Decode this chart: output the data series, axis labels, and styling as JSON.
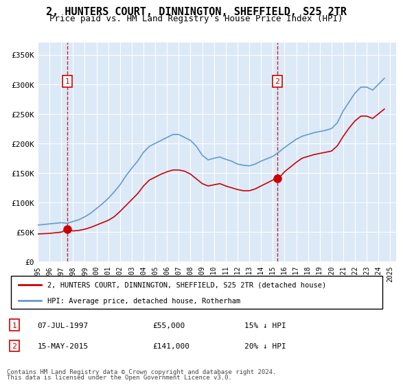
{
  "title": "2, HUNTERS COURT, DINNINGTON, SHEFFIELD, S25 2TR",
  "subtitle": "Price paid vs. HM Land Registry's House Price Index (HPI)",
  "legend_line1": "2, HUNTERS COURT, DINNINGTON, SHEFFIELD, S25 2TR (detached house)",
  "legend_line2": "HPI: Average price, detached house, Rotherham",
  "sale1_label": "1",
  "sale1_date": "07-JUL-1997",
  "sale1_price": "£55,000",
  "sale1_hpi": "15% ↓ HPI",
  "sale1_year": 1997.52,
  "sale1_value": 55000,
  "sale2_label": "2",
  "sale2_date": "15-MAY-2015",
  "sale2_price": "£141,000",
  "sale2_hpi": "20% ↓ HPI",
  "sale2_year": 2015.37,
  "sale2_value": 141000,
  "ylabel_ticks": [
    "£0",
    "£50K",
    "£100K",
    "£150K",
    "£200K",
    "£250K",
    "£300K",
    "£350K"
  ],
  "ytick_values": [
    0,
    50000,
    100000,
    150000,
    200000,
    250000,
    300000,
    350000
  ],
  "ylim": [
    0,
    370000
  ],
  "xlim_left": 1995.0,
  "xlim_right": 2025.5,
  "background_color": "#dce9f7",
  "plot_bg": "#dce9f7",
  "red_line_color": "#cc0000",
  "blue_line_color": "#6699cc",
  "marker_color": "#cc0000",
  "dashed_color": "#cc0000",
  "footer": "Contains HM Land Registry data © Crown copyright and database right 2024.\nThis data is licensed under the Open Government Licence v3.0."
}
